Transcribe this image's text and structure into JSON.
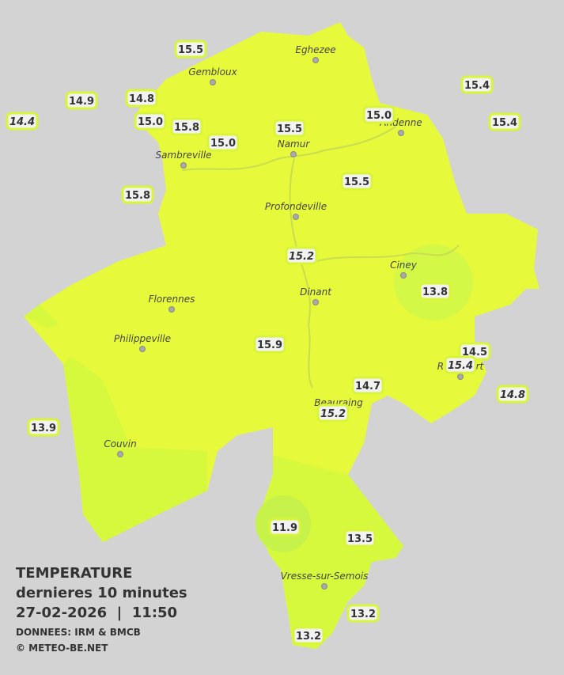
{
  "legend": {
    "title": "TEMPERATURE",
    "subtitle": "dernieres 10 minutes",
    "datetime": "27-02-2026  |  11:50",
    "source": "DONNEES: IRM & BMCB",
    "copyright": "© METEO-BE.NET"
  },
  "cities": [
    "Eghezee",
    "Gembloux",
    "Andenne",
    "Namur",
    "Sambreville",
    "Profondeville",
    "Ciney",
    "Dinant",
    "Florennes",
    "Philippeville",
    "Rochefort",
    "Beauraing",
    "Couvin",
    "Vresse-sur-Semois"
  ],
  "stations": [
    {
      "label": "15.5"
    },
    {
      "label": "14.9"
    },
    {
      "label": "14.8"
    },
    {
      "label": "14.4",
      "italic": true
    },
    {
      "label": "15.0"
    },
    {
      "label": "15.8"
    },
    {
      "label": "15.0"
    },
    {
      "label": "15.5"
    },
    {
      "label": "15.0"
    },
    {
      "label": "15.4"
    },
    {
      "label": "15.4"
    },
    {
      "label": "15.5"
    },
    {
      "label": "15.8"
    },
    {
      "label": "15.2",
      "italic": true
    },
    {
      "label": "13.8"
    },
    {
      "label": "15.9"
    },
    {
      "label": "14.5"
    },
    {
      "label": "15.4",
      "italic": true
    },
    {
      "label": "14.7"
    },
    {
      "label": "14.8",
      "italic": true
    },
    {
      "label": "15.2",
      "italic": true
    },
    {
      "label": "13.9"
    },
    {
      "label": "11.9"
    },
    {
      "label": "13.5"
    },
    {
      "label": "13.2"
    },
    {
      "label": "13.2"
    }
  ]
}
